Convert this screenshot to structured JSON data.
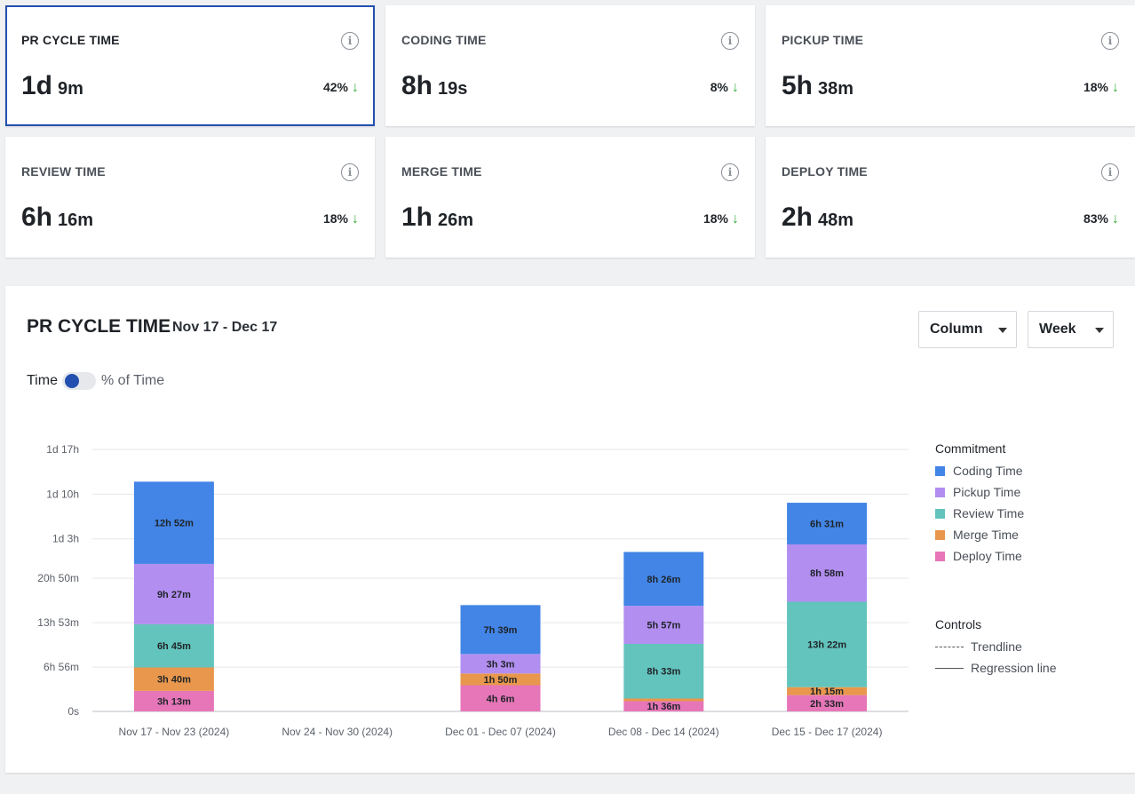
{
  "cards": [
    {
      "title": "PR CYCLE TIME",
      "value_main": "1d",
      "value_sub": "9m",
      "change": "42%",
      "arrow": "↓",
      "selected": true
    },
    {
      "title": "CODING TIME",
      "value_main": "8h",
      "value_sub": "19s",
      "change": "8%",
      "arrow": "↓",
      "selected": false
    },
    {
      "title": "PICKUP TIME",
      "value_main": "5h",
      "value_sub": "38m",
      "change": "18%",
      "arrow": "↓",
      "selected": false
    },
    {
      "title": "REVIEW TIME",
      "value_main": "6h",
      "value_sub": "16m",
      "change": "18%",
      "arrow": "↓",
      "selected": false
    },
    {
      "title": "MERGE TIME",
      "value_main": "1h",
      "value_sub": "26m",
      "change": "18%",
      "arrow": "↓",
      "selected": false
    },
    {
      "title": "DEPLOY TIME",
      "value_main": "2h",
      "value_sub": "48m",
      "change": "83%",
      "arrow": "↓",
      "selected": false
    }
  ],
  "info_icon": "i",
  "panel": {
    "title": "PR CYCLE TIME",
    "date_range": "Nov 17 - Dec 17",
    "chart_type_select": "Column",
    "period_select": "Week",
    "toggle_left": "Time",
    "toggle_right": "% of Time"
  },
  "legend": {
    "heading": "Commitment",
    "items": [
      {
        "label": "Coding Time",
        "color": "#4285e6"
      },
      {
        "label": "Pickup Time",
        "color": "#b28ef0"
      },
      {
        "label": "Review Time",
        "color": "#63c4bd"
      },
      {
        "label": "Merge Time",
        "color": "#e8974c"
      },
      {
        "label": "Deploy Time",
        "color": "#e676b8"
      }
    ]
  },
  "controls": {
    "heading": "Controls",
    "items": [
      {
        "label": "Trendline",
        "style": "dashed"
      },
      {
        "label": "Regression line",
        "style": "solid"
      }
    ]
  },
  "chart_data": {
    "type": "bar",
    "stacked": true,
    "unit": "minutes",
    "categories": [
      "Nov 17 - Nov 23 (2024)",
      "Nov 24 - Nov 30 (2024)",
      "Dec 01 - Dec 07 (2024)",
      "Dec 08 - Dec 14 (2024)",
      "Dec 15 - Dec 17 (2024)"
    ],
    "series": [
      {
        "name": "Deploy Time",
        "color": "#e676b8",
        "values": [
          193,
          0,
          246,
          96,
          153
        ],
        "labels": [
          "3h 13m",
          "",
          "4h 6m",
          "1h 36m",
          "2h 33m"
        ]
      },
      {
        "name": "Merge Time",
        "color": "#e8974c",
        "values": [
          220,
          0,
          110,
          25,
          75
        ],
        "labels": [
          "3h 40m",
          "",
          "1h 50m",
          "",
          "1h 15m"
        ]
      },
      {
        "name": "Review Time",
        "color": "#63c4bd",
        "values": [
          405,
          0,
          0,
          513,
          802
        ],
        "labels": [
          "6h 45m",
          "",
          "",
          "8h 33m",
          "13h 22m"
        ]
      },
      {
        "name": "Pickup Time",
        "color": "#b28ef0",
        "values": [
          567,
          0,
          183,
          357,
          538
        ],
        "labels": [
          "9h 27m",
          "",
          "3h 3m",
          "5h 57m",
          "8h 58m"
        ]
      },
      {
        "name": "Coding Time",
        "color": "#4285e6",
        "values": [
          772,
          0,
          459,
          506,
          391
        ],
        "labels": [
          "12h 52m",
          "",
          "7h 39m",
          "8h 26m",
          "6h 31m"
        ]
      }
    ],
    "y_ticks": [
      {
        "value": 0,
        "label": "0s"
      },
      {
        "value": 416,
        "label": "6h 56m"
      },
      {
        "value": 833,
        "label": "13h 53m"
      },
      {
        "value": 1250,
        "label": "20h 50m"
      },
      {
        "value": 1620,
        "label": "1d 3h"
      },
      {
        "value": 2040,
        "label": "1d 10h"
      },
      {
        "value": 2460,
        "label": "1d 17h"
      }
    ],
    "ylim": [
      0,
      2460
    ],
    "grid": true,
    "legend_position": "right"
  }
}
